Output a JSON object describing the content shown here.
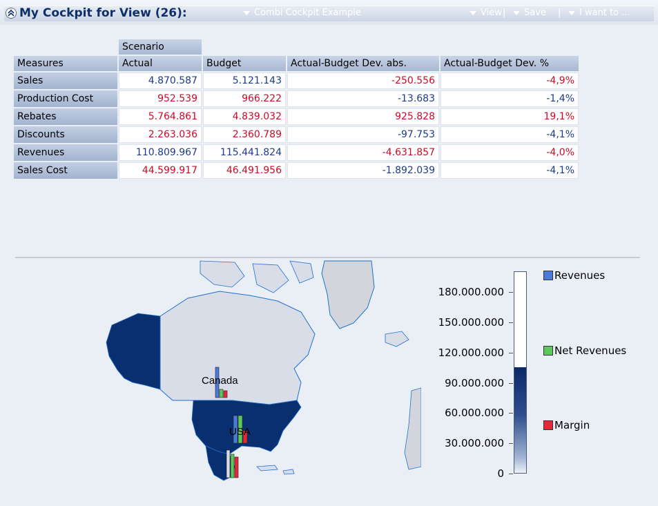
{
  "header": {
    "title": "My Cockpit for View (26):",
    "cockpit_menu": "Combi Cockpit Example",
    "view_menu": "View",
    "save_menu": "Save",
    "i_want_to_menu": "I want to ...",
    "separator": "|"
  },
  "table": {
    "scenario_label": "Scenario",
    "columns": [
      "Measures",
      "Actual",
      "Budget",
      "Actual-Budget Dev. abs.",
      "Actual-Budget Dev. %"
    ],
    "rows": [
      {
        "measure": "Sales",
        "actual": "4.870.587",
        "budget": "5.121.143",
        "dev_abs": "-250.556",
        "dev_pct": "-4,9%"
      },
      {
        "measure": "Production Cost",
        "actual": "952.539",
        "budget": "966.222",
        "dev_abs": "-13.683",
        "dev_pct": "-1,4%"
      },
      {
        "measure": "Rebates",
        "actual": "5.764.861",
        "budget": "4.839.032",
        "dev_abs": "925.828",
        "dev_pct": "19,1%"
      },
      {
        "measure": "Discounts",
        "actual": "2.263.036",
        "budget": "2.360.789",
        "dev_abs": "-97.753",
        "dev_pct": "-4,1%"
      },
      {
        "measure": "Revenues",
        "actual": "110.809.967",
        "budget": "115.441.824",
        "dev_abs": "-4.631.857",
        "dev_pct": "-4,0%"
      },
      {
        "measure": "Sales Cost",
        "actual": "44.599.917",
        "budget": "46.491.956",
        "dev_abs": "-1.892.039",
        "dev_pct": "-4,1%"
      }
    ]
  },
  "map": {
    "labels": [
      "Canada",
      "USA"
    ],
    "scale": {
      "ticks": [
        "180.000.000",
        "150.000.000",
        "120.000.000",
        "90.000.000",
        "60.000.000",
        "30.000.000",
        "0"
      ],
      "max": 200000000,
      "filled_value": 105000000
    },
    "legend": [
      {
        "name": "Revenues",
        "color": "#4a7bd6"
      },
      {
        "name": "Net Revenues",
        "color": "#5cc85c"
      },
      {
        "name": "Margin",
        "color": "#e8283a"
      }
    ]
  },
  "colors": {
    "negative": "#cc0a25",
    "positive": "#1c3a8c",
    "title": "#0f2f6b",
    "map_dark": "#0a2f6e",
    "map_light": "#d8dde8"
  }
}
